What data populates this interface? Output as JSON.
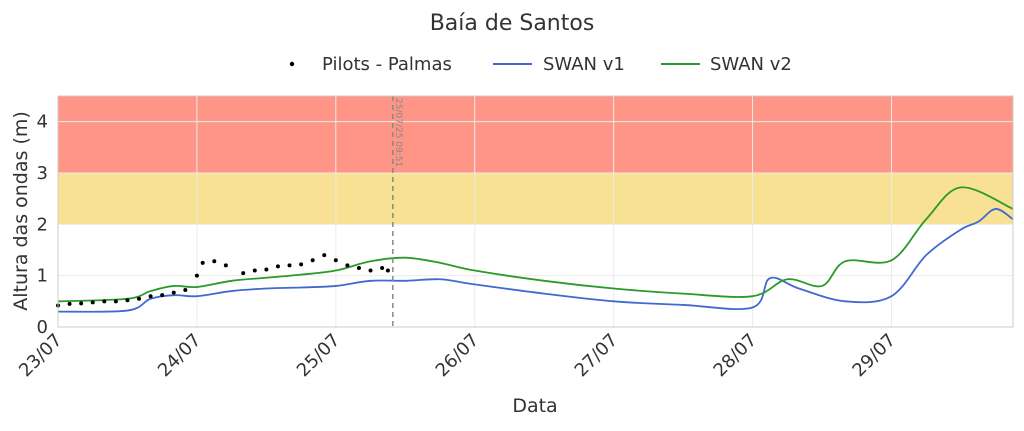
{
  "chart_data": {
    "type": "line",
    "title": "Baía de Santos",
    "xlabel": "Data",
    "ylabel": "Altura das ondas (m)",
    "ylim": [
      0,
      4.5
    ],
    "xlim": [
      "2025-07-23 00:00",
      "2025-07-29 21:00"
    ],
    "x_ticks": [
      "23/07",
      "24/07",
      "25/07",
      "26/07",
      "27/07",
      "28/07",
      "29/07"
    ],
    "y_ticks": [
      0,
      1,
      2,
      3,
      4
    ],
    "grid": true,
    "legend": {
      "placement": "top-center"
    },
    "bands": [
      {
        "from": 2,
        "to": 3,
        "color": "#f8e193"
      },
      {
        "from": 3,
        "to": 4.5,
        "color": "#ff9586"
      }
    ],
    "reference_line": {
      "x": "2025-07-25 09:51",
      "label": "25/07/25 09:51",
      "color": "#888888"
    },
    "series": [
      {
        "name": "SWAN v1",
        "color": "#4169cf",
        "points": [
          [
            "2025-07-23 00:00",
            0.3
          ],
          [
            "2025-07-23 12:00",
            0.32
          ],
          [
            "2025-07-23 16:00",
            0.55
          ],
          [
            "2025-07-23 20:00",
            0.62
          ],
          [
            "2025-07-24 00:00",
            0.6
          ],
          [
            "2025-07-24 06:00",
            0.7
          ],
          [
            "2025-07-24 12:00",
            0.75
          ],
          [
            "2025-07-24 18:00",
            0.77
          ],
          [
            "2025-07-25 00:00",
            0.8
          ],
          [
            "2025-07-25 06:00",
            0.9
          ],
          [
            "2025-07-25 12:00",
            0.9
          ],
          [
            "2025-07-25 18:00",
            0.93
          ],
          [
            "2025-07-26 00:00",
            0.83
          ],
          [
            "2025-07-26 12:00",
            0.65
          ],
          [
            "2025-07-27 00:00",
            0.5
          ],
          [
            "2025-07-27 12:00",
            0.43
          ],
          [
            "2025-07-28 00:00",
            0.38
          ],
          [
            "2025-07-28 03:00",
            0.95
          ],
          [
            "2025-07-28 08:00",
            0.75
          ],
          [
            "2025-07-28 16:00",
            0.5
          ],
          [
            "2025-07-29 00:00",
            0.6
          ],
          [
            "2025-07-29 06:00",
            1.4
          ],
          [
            "2025-07-29 12:00",
            1.9
          ],
          [
            "2025-07-29 15:00",
            2.05
          ],
          [
            "2025-07-29 18:00",
            2.3
          ],
          [
            "2025-07-29 21:00",
            2.1
          ]
        ]
      },
      {
        "name": "SWAN v2",
        "color": "#2a9a2a",
        "points": [
          [
            "2025-07-23 00:00",
            0.5
          ],
          [
            "2025-07-23 12:00",
            0.55
          ],
          [
            "2025-07-23 16:00",
            0.7
          ],
          [
            "2025-07-23 20:00",
            0.8
          ],
          [
            "2025-07-24 00:00",
            0.78
          ],
          [
            "2025-07-24 06:00",
            0.9
          ],
          [
            "2025-07-24 12:00",
            0.96
          ],
          [
            "2025-07-24 18:00",
            1.02
          ],
          [
            "2025-07-25 00:00",
            1.1
          ],
          [
            "2025-07-25 06:00",
            1.28
          ],
          [
            "2025-07-25 12:00",
            1.35
          ],
          [
            "2025-07-25 18:00",
            1.25
          ],
          [
            "2025-07-26 00:00",
            1.1
          ],
          [
            "2025-07-26 12:00",
            0.9
          ],
          [
            "2025-07-27 00:00",
            0.75
          ],
          [
            "2025-07-27 12:00",
            0.65
          ],
          [
            "2025-07-28 00:00",
            0.6
          ],
          [
            "2025-07-28 06:00",
            0.93
          ],
          [
            "2025-07-28 12:00",
            0.8
          ],
          [
            "2025-07-28 16:00",
            1.28
          ],
          [
            "2025-07-29 00:00",
            1.3
          ],
          [
            "2025-07-29 06:00",
            2.1
          ],
          [
            "2025-07-29 12:00",
            2.72
          ],
          [
            "2025-07-29 21:00",
            2.3
          ]
        ]
      }
    ],
    "scatter": {
      "name": "Pilots - Palmas",
      "color": "#000000",
      "points": [
        [
          "2025-07-23 00:00",
          0.42
        ],
        [
          "2025-07-23 02:00",
          0.45
        ],
        [
          "2025-07-23 04:00",
          0.46
        ],
        [
          "2025-07-23 06:00",
          0.48
        ],
        [
          "2025-07-23 08:00",
          0.5
        ],
        [
          "2025-07-23 10:00",
          0.5
        ],
        [
          "2025-07-23 12:00",
          0.52
        ],
        [
          "2025-07-23 14:00",
          0.55
        ],
        [
          "2025-07-23 16:00",
          0.6
        ],
        [
          "2025-07-23 18:00",
          0.62
        ],
        [
          "2025-07-23 20:00",
          0.67
        ],
        [
          "2025-07-23 22:00",
          0.72
        ],
        [
          "2025-07-24 00:00",
          1.0
        ],
        [
          "2025-07-24 01:00",
          1.25
        ],
        [
          "2025-07-24 03:00",
          1.28
        ],
        [
          "2025-07-24 05:00",
          1.2
        ],
        [
          "2025-07-24 08:00",
          1.05
        ],
        [
          "2025-07-24 10:00",
          1.1
        ],
        [
          "2025-07-24 12:00",
          1.12
        ],
        [
          "2025-07-24 14:00",
          1.18
        ],
        [
          "2025-07-24 16:00",
          1.2
        ],
        [
          "2025-07-24 18:00",
          1.22
        ],
        [
          "2025-07-24 20:00",
          1.3
        ],
        [
          "2025-07-24 22:00",
          1.4
        ],
        [
          "2025-07-25 00:00",
          1.3
        ],
        [
          "2025-07-25 02:00",
          1.2
        ],
        [
          "2025-07-25 04:00",
          1.15
        ],
        [
          "2025-07-25 06:00",
          1.1
        ],
        [
          "2025-07-25 08:00",
          1.15
        ],
        [
          "2025-07-25 09:00",
          1.1
        ]
      ]
    }
  }
}
